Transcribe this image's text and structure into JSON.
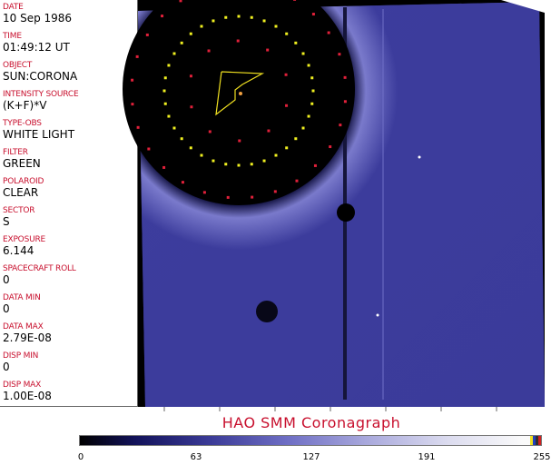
{
  "fields": [
    {
      "label": "DATE",
      "value": "10 Sep 1986"
    },
    {
      "label": "TIME",
      "value": "01:49:12 UT"
    },
    {
      "label": "OBJECT",
      "value": "SUN:CORONA"
    },
    {
      "label": "INTENSITY SOURCE",
      "value": "(K+F)*V"
    },
    {
      "label": "TYPE-OBS",
      "value": "WHITE LIGHT"
    },
    {
      "label": "FILTER",
      "value": "GREEN"
    },
    {
      "label": "POLAROID",
      "value": "CLEAR"
    },
    {
      "label": "SECTOR",
      "value": "S"
    },
    {
      "label": "EXPOSURE",
      "value": "6.144"
    },
    {
      "label": "SPACECRAFT ROLL",
      "value": "0"
    },
    {
      "label": "DATA MIN",
      "value": "0"
    },
    {
      "label": "DATA MAX",
      "value": "2.79E-08"
    },
    {
      "label": "DISP MIN",
      "value": "0"
    },
    {
      "label": "DISP MAX",
      "value": "1.00E-08"
    }
  ],
  "title": "HAO   SMM Coronagraph",
  "colorbar": {
    "labels": [
      "0",
      "63",
      "127",
      "191",
      "255"
    ],
    "min": 0,
    "max": 255,
    "end_colors": [
      "#f0e020",
      "#2040c0",
      "#303030",
      "#d02020"
    ]
  },
  "colors": {
    "label": "#c8102e",
    "image": "#3c3c9c",
    "marker_red": "#e0203a",
    "marker_yellow": "#f0f020"
  }
}
